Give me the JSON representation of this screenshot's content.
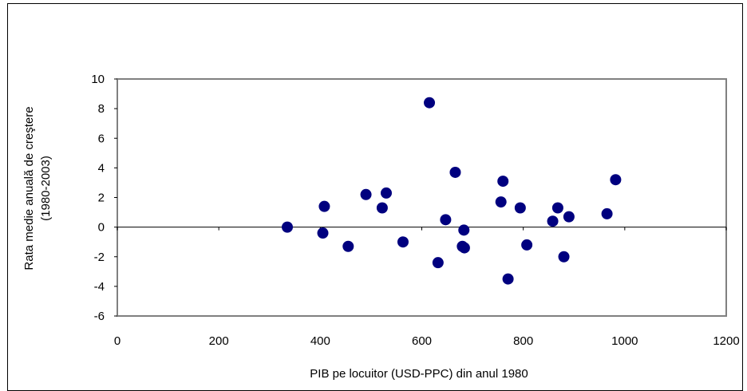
{
  "chart_data": {
    "type": "scatter",
    "xlabel": "PIB pe locuitor (USD-PPC) din anul 1980",
    "ylabel": [
      "Rata medie anuală de creştere",
      "(1980-2003)"
    ],
    "xlim": [
      0,
      1200
    ],
    "ylim": [
      -6,
      10
    ],
    "xticks": [
      0,
      200,
      400,
      600,
      800,
      1000,
      1200
    ],
    "yticks": [
      10,
      8,
      6,
      4,
      2,
      0,
      -2,
      -4,
      -6
    ],
    "grid": false,
    "legend": "none",
    "marker_color": "#00007f",
    "points": [
      {
        "x": 335,
        "y": 0.0
      },
      {
        "x": 405,
        "y": -0.4
      },
      {
        "x": 408,
        "y": 1.4
      },
      {
        "x": 455,
        "y": -1.3
      },
      {
        "x": 490,
        "y": 2.2
      },
      {
        "x": 522,
        "y": 1.3
      },
      {
        "x": 530,
        "y": 2.3
      },
      {
        "x": 563,
        "y": -1.0
      },
      {
        "x": 615,
        "y": 8.4
      },
      {
        "x": 632,
        "y": -2.4
      },
      {
        "x": 647,
        "y": 0.5
      },
      {
        "x": 666,
        "y": 3.7
      },
      {
        "x": 680,
        "y": -1.3
      },
      {
        "x": 683,
        "y": -0.2
      },
      {
        "x": 684,
        "y": -1.4
      },
      {
        "x": 756,
        "y": 1.7
      },
      {
        "x": 760,
        "y": 3.1
      },
      {
        "x": 770,
        "y": -3.5
      },
      {
        "x": 794,
        "y": 1.3
      },
      {
        "x": 807,
        "y": -1.2
      },
      {
        "x": 858,
        "y": 0.4
      },
      {
        "x": 868,
        "y": 1.3
      },
      {
        "x": 880,
        "y": -2.0
      },
      {
        "x": 890,
        "y": 0.7
      },
      {
        "x": 965,
        "y": 0.9
      },
      {
        "x": 982,
        "y": 3.2
      }
    ]
  }
}
